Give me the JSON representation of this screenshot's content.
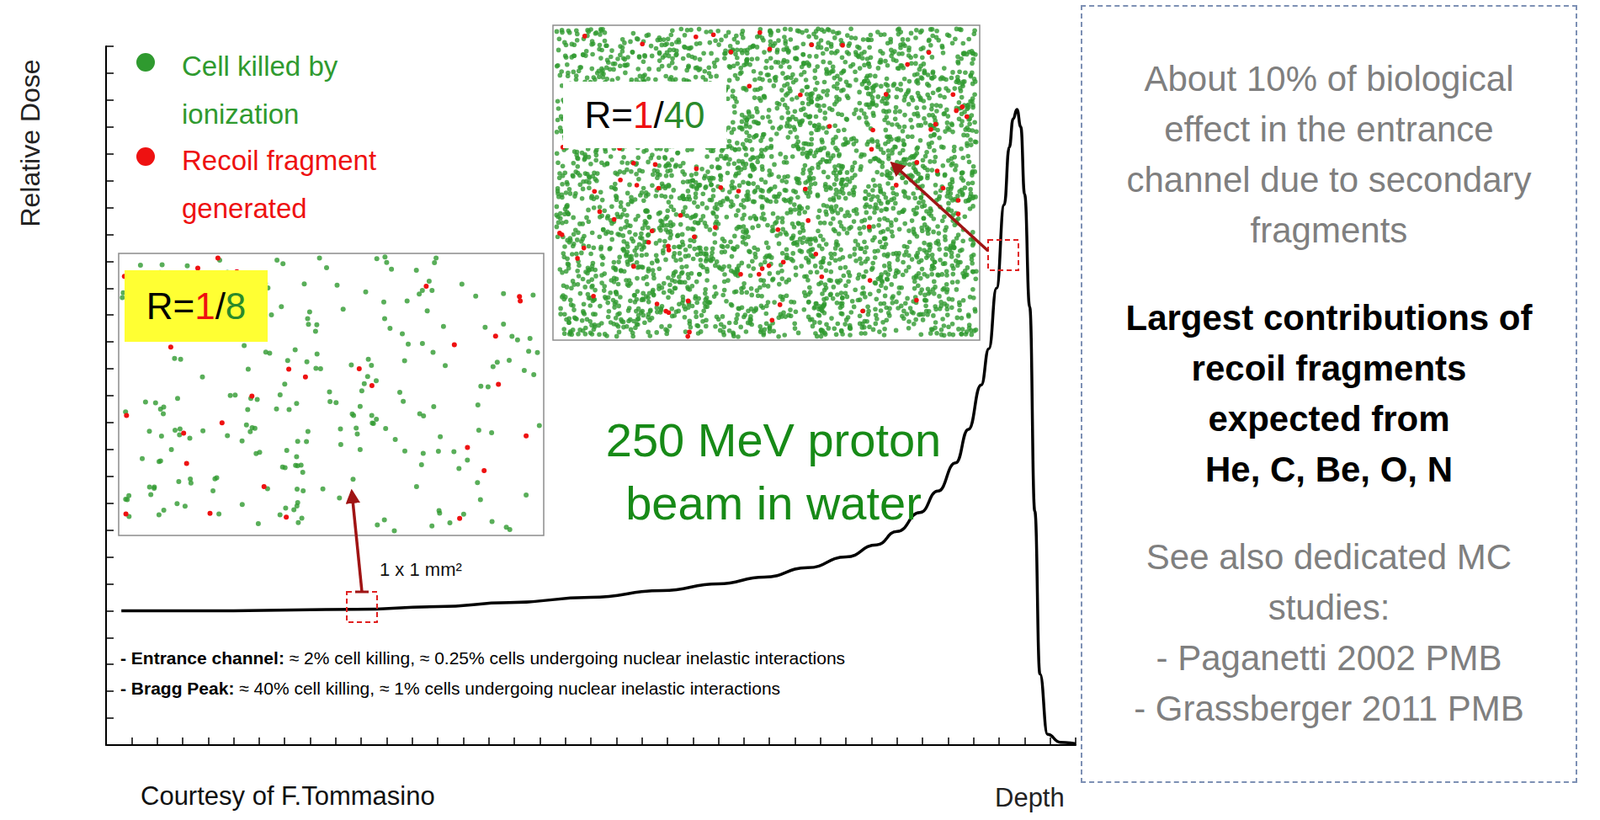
{
  "chart_data": {
    "type": "line",
    "x_label": "Depth",
    "y_label": "Relative Dose",
    "x": [
      0.6,
      5.0,
      9.8,
      13.0,
      15.8,
      19.0,
      21.8,
      24.0,
      25.8,
      27.5,
      29.0,
      30.2,
      31.0,
      31.9,
      32.6,
      33.3,
      33.8,
      34.3,
      34.6,
      34.9,
      35.2,
      35.4,
      35.55,
      35.7,
      35.85,
      36.0,
      36.2,
      36.4,
      36.6,
      36.9,
      37.4,
      38.0
    ],
    "values": [
      1.0,
      1.0,
      1.01,
      1.03,
      1.06,
      1.1,
      1.15,
      1.2,
      1.25,
      1.32,
      1.4,
      1.49,
      1.59,
      1.73,
      1.89,
      2.1,
      2.35,
      2.68,
      2.95,
      3.4,
      4.02,
      4.45,
      4.66,
      4.73,
      4.6,
      4.1,
      3.26,
      1.74,
      0.53,
      0.08,
      0.02,
      0.01
    ],
    "color": "#000000",
    "xlim": [
      0,
      38
    ],
    "ylim": [
      0,
      5.2
    ],
    "xticks": [
      0,
      1,
      2,
      3,
      4,
      5,
      6,
      7,
      8,
      9,
      10,
      11,
      12,
      13,
      14,
      15,
      16,
      17,
      18,
      19,
      20,
      21,
      22,
      23,
      24,
      25,
      26,
      27,
      28,
      29,
      30,
      31,
      32,
      33,
      34,
      35,
      36,
      37,
      38
    ],
    "yticks": [
      0,
      0.2,
      0.4,
      0.6,
      0.8,
      1,
      1.2,
      1.4,
      1.6,
      1.8,
      2,
      2.2,
      2.4,
      2.6,
      2.8,
      3,
      3.2,
      3.4,
      3.6,
      3.8,
      4,
      4.2,
      4.4,
      4.6,
      4.8,
      5,
      5.2
    ],
    "tick_labels": false,
    "grid": false,
    "annotations": {
      "beam": "250 MeV proton beam in water",
      "area": "1 x 1 mm²",
      "credit": "Courtesy of F.Tommasino",
      "notes": [
        {
          "label": "- Entrance channel:",
          "text": "≈ 2% cell killing, ≈ 0.25% cells undergoing nuclear inelastic interactions"
        },
        {
          "label": "- Bragg Peak:",
          "text": "≈ 40% cell killing, ≈ 1% cells undergoing nuclear inelastic interactions"
        }
      ]
    },
    "dot_legend": [
      {
        "label": "Cell killed by ionization",
        "color": "#2f9a2f"
      },
      {
        "label": "Recoil fragment generated",
        "color": "#ee1111"
      }
    ],
    "insets": [
      {
        "ratio": "R=1/8"
      },
      {
        "ratio": "R=1/40"
      }
    ],
    "side_box": [
      {
        "style": "normal",
        "lines": [
          "About 10% of biological",
          "effect in the entrance",
          "channel due to secondary",
          "fragments"
        ]
      },
      {
        "style": "bold",
        "lines": [
          "Largest contributions of",
          "recoil fragments",
          "expected from",
          "He, C, Be, O, N"
        ]
      },
      {
        "style": "normal",
        "lines": [
          "See also dedicated MC",
          "studies:",
          "- Paganetti 2002 PMB",
          "- Grassberger 2011 PMB"
        ]
      }
    ]
  }
}
